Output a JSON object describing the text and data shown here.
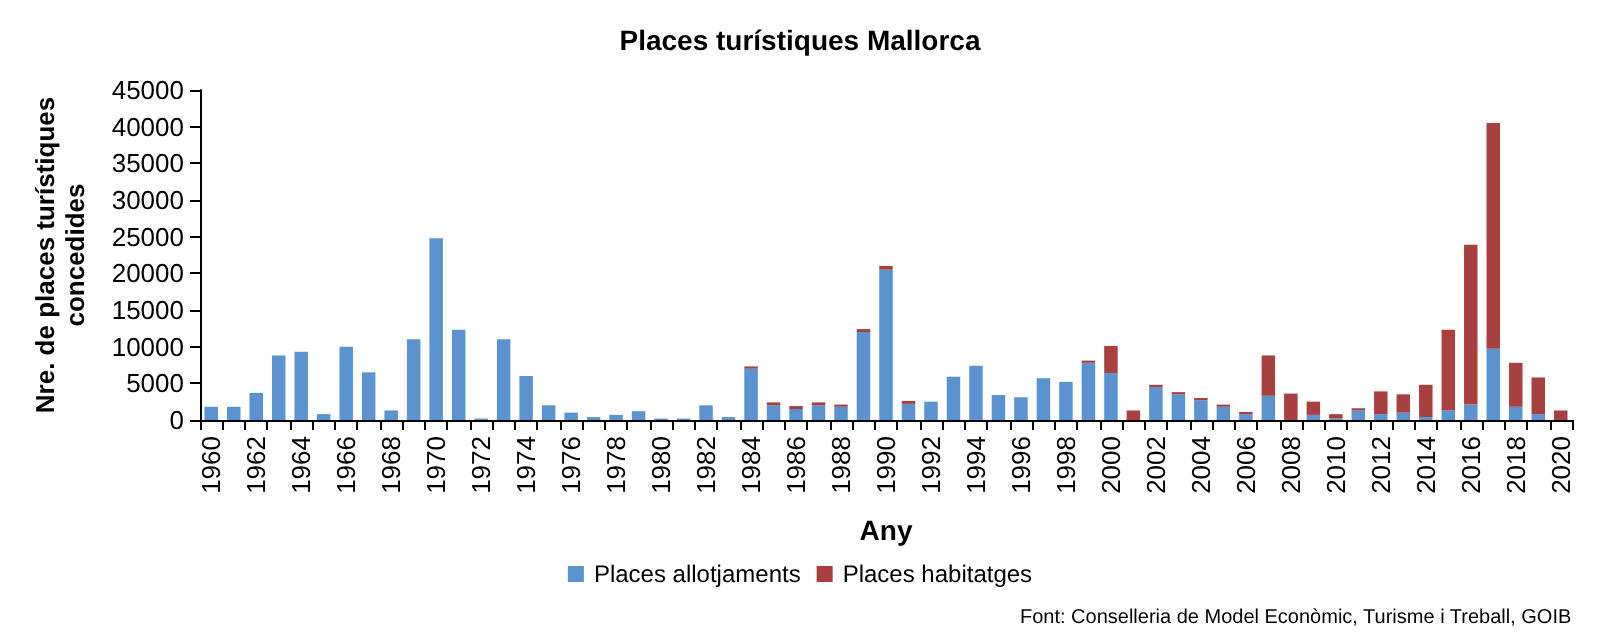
{
  "chart_data": {
    "type": "bar",
    "title": "Places turístiques Mallorca",
    "xlabel": "Any",
    "ylabel": "Nre. de places turístiques concedides",
    "annotations": [
      "Font: Conselleria de Model Econòmic, Turisme i Treball, GOIB"
    ],
    "categories": [
      "1960",
      null,
      "1962",
      null,
      "1964",
      null,
      "1966",
      null,
      "1968",
      null,
      "1970",
      null,
      "1972",
      null,
      "1974",
      null,
      "1976",
      null,
      "1978",
      null,
      "1980",
      null,
      "1982",
      null,
      "1984",
      null,
      "1986",
      null,
      "1988",
      null,
      "1990",
      null,
      "1992",
      null,
      "1994",
      null,
      "1996",
      null,
      "1998",
      null,
      "2000",
      null,
      "2002",
      null,
      "2004",
      null,
      "2006",
      null,
      "2008",
      null,
      "2010",
      null,
      "2012",
      null,
      "2014",
      null,
      "2016",
      null,
      "2018",
      null,
      "2020"
    ],
    "stacked": true,
    "series": [
      {
        "name": "Places allotjaments",
        "color": "#5b93d0",
        "values": [
          1800,
          1800,
          3700,
          8800,
          9300,
          800,
          10000,
          6500,
          1300,
          11000,
          24800,
          12300,
          200,
          11000,
          6000,
          2000,
          1000,
          400,
          700,
          1200,
          200,
          200,
          2000,
          400,
          7000,
          2000,
          1500,
          2000,
          1800,
          12000,
          20500,
          2200,
          2500,
          5900,
          7400,
          3400,
          3100,
          5700,
          5200,
          7800,
          6400,
          0,
          4500,
          3500,
          2700,
          1800,
          800,
          3300,
          0,
          700,
          200,
          1300,
          800,
          1000,
          400,
          1300,
          2100,
          9700,
          1800,
          800,
          0
        ]
      },
      {
        "name": "Places habitatges",
        "color": "#a8403f",
        "values": [
          0,
          0,
          0,
          0,
          0,
          0,
          0,
          0,
          0,
          0,
          0,
          0,
          0,
          0,
          0,
          0,
          0,
          0,
          0,
          0,
          0,
          0,
          0,
          0,
          300,
          400,
          400,
          400,
          300,
          400,
          500,
          400,
          0,
          0,
          0,
          0,
          0,
          0,
          0,
          300,
          3700,
          1300,
          300,
          300,
          300,
          300,
          300,
          5500,
          3600,
          1800,
          600,
          300,
          3100,
          2500,
          4400,
          11000,
          21800,
          30800,
          6000,
          5000,
          1300
        ]
      }
    ],
    "ylim": [
      0,
      45000
    ],
    "yticks": [
      0,
      5000,
      10000,
      15000,
      20000,
      25000,
      30000,
      35000,
      40000,
      45000
    ],
    "grid": false,
    "legend": "bottom"
  }
}
